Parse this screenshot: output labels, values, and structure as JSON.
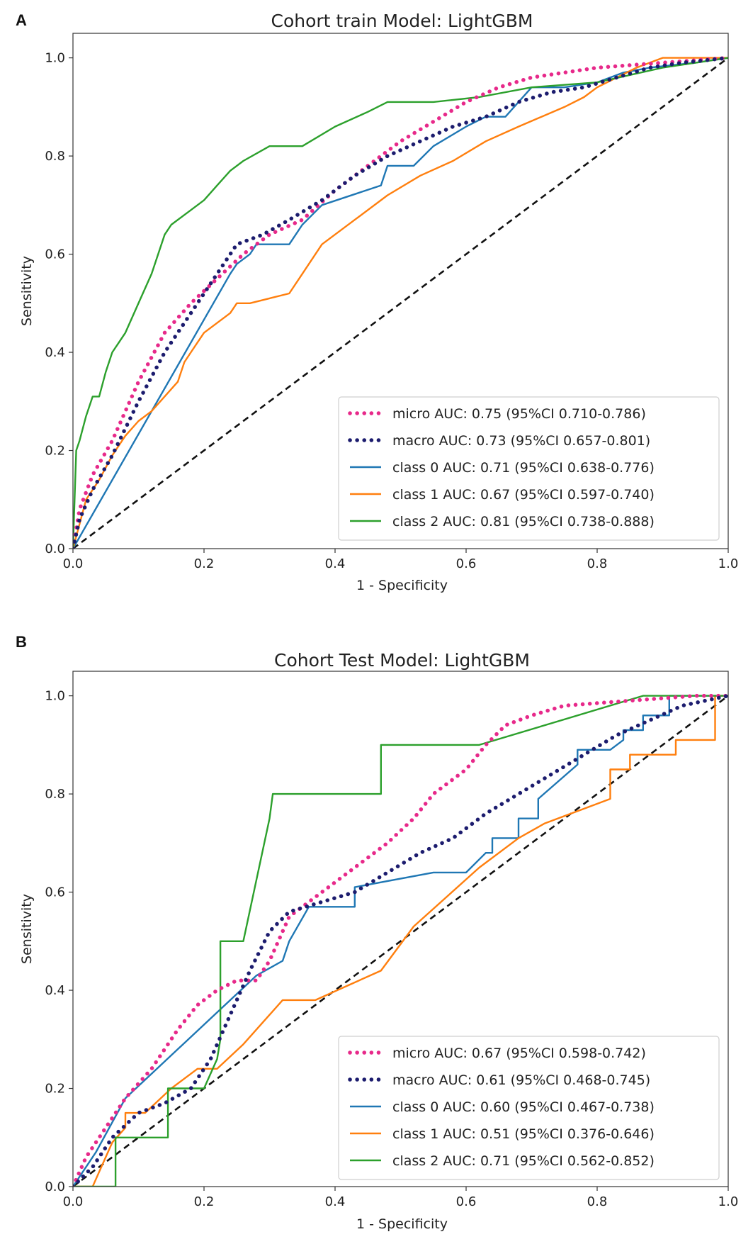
{
  "chart_data": [
    {
      "type": "line",
      "panel_label": "A",
      "title": "Cohort train Model: LightGBM",
      "xlabel": "1 - Specificity",
      "ylabel": "Sensitivity",
      "xlim": [
        0,
        1
      ],
      "ylim": [
        0,
        1.05
      ],
      "xticks": [
        "0.0",
        "0.2",
        "0.4",
        "0.6",
        "0.8",
        "1.0"
      ],
      "yticks": [
        "0.0",
        "0.2",
        "0.4",
        "0.6",
        "0.8",
        "1.0"
      ],
      "legend_position": "lower-right",
      "series": [
        {
          "name": "micro AUC: 0.75 (95%CI 0.710-0.786)",
          "color": "#e7298a",
          "style": "dotted",
          "x": [
            0,
            0.01,
            0.03,
            0.06,
            0.1,
            0.14,
            0.18,
            0.22,
            0.26,
            0.3,
            0.35,
            0.4,
            0.45,
            0.5,
            0.55,
            0.6,
            0.65,
            0.7,
            0.75,
            0.8,
            0.85,
            0.9,
            0.95,
            1.0
          ],
          "y": [
            0,
            0.08,
            0.15,
            0.22,
            0.34,
            0.44,
            0.5,
            0.55,
            0.6,
            0.64,
            0.67,
            0.73,
            0.78,
            0.83,
            0.87,
            0.91,
            0.94,
            0.96,
            0.97,
            0.98,
            0.985,
            0.99,
            0.995,
            1.0
          ]
        },
        {
          "name": "macro AUC: 0.73 (95%CI 0.657-0.801)",
          "color": "#1c1c6e",
          "style": "dotted",
          "x": [
            0,
            0.01,
            0.03,
            0.06,
            0.1,
            0.14,
            0.18,
            0.22,
            0.25,
            0.29,
            0.33,
            0.38,
            0.43,
            0.48,
            0.53,
            0.58,
            0.63,
            0.68,
            0.73,
            0.78,
            0.83,
            0.88,
            0.93,
            1.0
          ],
          "y": [
            0,
            0.06,
            0.12,
            0.19,
            0.3,
            0.4,
            0.48,
            0.56,
            0.62,
            0.64,
            0.67,
            0.71,
            0.76,
            0.8,
            0.83,
            0.86,
            0.88,
            0.91,
            0.93,
            0.94,
            0.96,
            0.98,
            0.99,
            1.0
          ]
        },
        {
          "name": "class 0 AUC: 0.71 (95%CI 0.638-0.776)",
          "color": "#1f77b4",
          "style": "solid",
          "x": [
            0,
            0.24,
            0.25,
            0.27,
            0.28,
            0.33,
            0.35,
            0.38,
            0.47,
            0.48,
            0.5,
            0.52,
            0.55,
            0.6,
            0.63,
            0.66,
            0.7,
            0.75,
            0.8,
            0.84,
            0.88,
            0.95,
            1.0
          ],
          "y": [
            0,
            0.56,
            0.58,
            0.6,
            0.62,
            0.62,
            0.66,
            0.7,
            0.74,
            0.78,
            0.78,
            0.78,
            0.82,
            0.86,
            0.88,
            0.88,
            0.94,
            0.94,
            0.95,
            0.97,
            0.98,
            0.99,
            1.0
          ]
        },
        {
          "name": "class 1 AUC: 0.67 (95%CI 0.597-0.740)",
          "color": "#ff7f0e",
          "style": "solid",
          "x": [
            0,
            0.01,
            0.02,
            0.04,
            0.06,
            0.08,
            0.1,
            0.12,
            0.16,
            0.17,
            0.18,
            0.2,
            0.24,
            0.25,
            0.27,
            0.3,
            0.33,
            0.35,
            0.38,
            0.43,
            0.48,
            0.53,
            0.58,
            0.63,
            0.68,
            0.75,
            0.78,
            0.8,
            0.83,
            0.86,
            0.9,
            1.0
          ],
          "y": [
            0,
            0.05,
            0.1,
            0.14,
            0.19,
            0.23,
            0.26,
            0.28,
            0.34,
            0.38,
            0.4,
            0.44,
            0.48,
            0.5,
            0.5,
            0.51,
            0.52,
            0.56,
            0.62,
            0.67,
            0.72,
            0.76,
            0.79,
            0.83,
            0.86,
            0.9,
            0.92,
            0.94,
            0.96,
            0.98,
            1.0,
            1.0
          ]
        },
        {
          "name": "class 2 AUC: 0.81 (95%CI 0.738-0.888)",
          "color": "#2ca02c",
          "style": "solid",
          "x": [
            0,
            0.005,
            0.01,
            0.02,
            0.03,
            0.04,
            0.05,
            0.06,
            0.07,
            0.08,
            0.1,
            0.12,
            0.14,
            0.15,
            0.18,
            0.2,
            0.22,
            0.24,
            0.26,
            0.3,
            0.35,
            0.4,
            0.45,
            0.48,
            0.55,
            0.62,
            0.7,
            0.8,
            0.9,
            1.0
          ],
          "y": [
            0,
            0.2,
            0.22,
            0.27,
            0.31,
            0.31,
            0.36,
            0.4,
            0.42,
            0.44,
            0.5,
            0.56,
            0.64,
            0.66,
            0.69,
            0.71,
            0.74,
            0.77,
            0.79,
            0.82,
            0.82,
            0.86,
            0.89,
            0.91,
            0.91,
            0.92,
            0.94,
            0.95,
            0.98,
            1.0
          ]
        }
      ]
    },
    {
      "type": "line",
      "panel_label": "B",
      "title": "Cohort Test Model: LightGBM",
      "xlabel": "1 - Specificity",
      "ylabel": "Sensitivity",
      "xlim": [
        0,
        1
      ],
      "ylim": [
        0,
        1.05
      ],
      "xticks": [
        "0.0",
        "0.2",
        "0.4",
        "0.6",
        "0.8",
        "1.0"
      ],
      "yticks": [
        "0.0",
        "0.2",
        "0.4",
        "0.6",
        "0.8",
        "1.0"
      ],
      "legend_position": "lower-right",
      "series": [
        {
          "name": "micro AUC: 0.67 (95%CI 0.598-0.742)",
          "color": "#e7298a",
          "style": "dotted",
          "x": [
            0,
            0.02,
            0.05,
            0.08,
            0.12,
            0.16,
            0.19,
            0.22,
            0.25,
            0.28,
            0.3,
            0.33,
            0.36,
            0.4,
            0.44,
            0.48,
            0.52,
            0.55,
            0.6,
            0.63,
            0.66,
            0.7,
            0.75,
            0.8,
            0.85,
            0.9,
            0.95,
            1.0
          ],
          "y": [
            0,
            0.06,
            0.12,
            0.18,
            0.24,
            0.32,
            0.37,
            0.4,
            0.42,
            0.42,
            0.46,
            0.55,
            0.58,
            0.62,
            0.66,
            0.7,
            0.75,
            0.8,
            0.85,
            0.9,
            0.94,
            0.96,
            0.98,
            0.985,
            0.99,
            0.995,
            1.0,
            1.0
          ]
        },
        {
          "name": "macro AUC: 0.61 (95%CI 0.468-0.745)",
          "color": "#1c1c6e",
          "style": "dotted",
          "x": [
            0,
            0.03,
            0.06,
            0.1,
            0.14,
            0.18,
            0.21,
            0.24,
            0.27,
            0.3,
            0.33,
            0.38,
            0.43,
            0.48,
            0.53,
            0.58,
            0.63,
            0.68,
            0.73,
            0.78,
            0.83,
            0.88,
            0.93,
            1.0
          ],
          "y": [
            0,
            0.04,
            0.1,
            0.15,
            0.17,
            0.2,
            0.26,
            0.35,
            0.44,
            0.52,
            0.56,
            0.58,
            0.6,
            0.64,
            0.68,
            0.71,
            0.76,
            0.8,
            0.84,
            0.88,
            0.92,
            0.95,
            0.98,
            1.0
          ]
        },
        {
          "name": "class 0 AUC: 0.60 (95%CI 0.467-0.738)",
          "color": "#1f77b4",
          "style": "solid",
          "x": [
            0,
            0.035,
            0.08,
            0.28,
            0.32,
            0.33,
            0.36,
            0.43,
            0.43,
            0.55,
            0.6,
            0.63,
            0.64,
            0.64,
            0.68,
            0.68,
            0.71,
            0.71,
            0.77,
            0.77,
            0.82,
            0.84,
            0.84,
            0.87,
            0.87,
            0.91,
            0.91,
            1.0
          ],
          "y": [
            0,
            0.07,
            0.18,
            0.43,
            0.46,
            0.5,
            0.57,
            0.57,
            0.61,
            0.64,
            0.64,
            0.68,
            0.68,
            0.71,
            0.71,
            0.75,
            0.75,
            0.79,
            0.86,
            0.89,
            0.89,
            0.91,
            0.93,
            0.93,
            0.96,
            0.96,
            1.0,
            1.0
          ]
        },
        {
          "name": "class 1 AUC: 0.51 (95%CI 0.376-0.646)",
          "color": "#ff7f0e",
          "style": "solid",
          "x": [
            0,
            0.03,
            0.04,
            0.06,
            0.06,
            0.08,
            0.08,
            0.11,
            0.15,
            0.19,
            0.22,
            0.26,
            0.28,
            0.3,
            0.32,
            0.37,
            0.42,
            0.47,
            0.52,
            0.57,
            0.62,
            0.68,
            0.72,
            0.76,
            0.82,
            0.82,
            0.85,
            0.85,
            0.92,
            0.92,
            0.98,
            0.98,
            1.0
          ],
          "y": [
            0,
            0,
            0.03,
            0.09,
            0.09,
            0.12,
            0.15,
            0.15,
            0.2,
            0.24,
            0.24,
            0.29,
            0.32,
            0.35,
            0.38,
            0.38,
            0.41,
            0.44,
            0.53,
            0.59,
            0.65,
            0.71,
            0.74,
            0.76,
            0.79,
            0.85,
            0.85,
            0.88,
            0.88,
            0.91,
            0.91,
            1.0,
            1.0
          ]
        },
        {
          "name": "class 2 AUC: 0.71 (95%CI 0.562-0.852)",
          "color": "#2ca02c",
          "style": "solid",
          "x": [
            0,
            0.065,
            0.065,
            0.145,
            0.145,
            0.2,
            0.22,
            0.225,
            0.225,
            0.26,
            0.3,
            0.305,
            0.47,
            0.47,
            0.62,
            0.87,
            1.0
          ],
          "y": [
            0,
            0,
            0.1,
            0.1,
            0.2,
            0.2,
            0.26,
            0.3,
            0.5,
            0.5,
            0.75,
            0.8,
            0.8,
            0.9,
            0.9,
            1.0,
            1.0
          ]
        }
      ]
    }
  ]
}
